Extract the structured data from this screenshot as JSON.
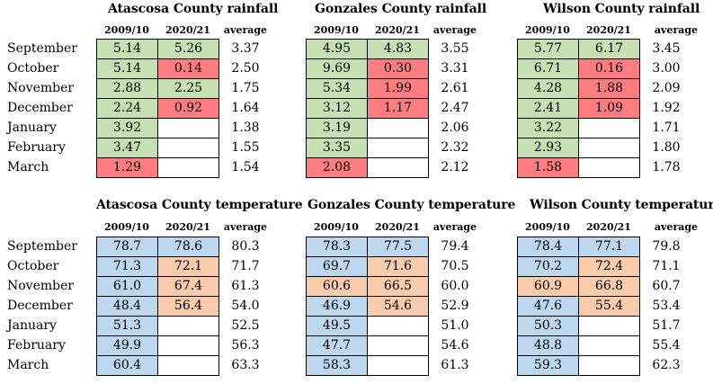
{
  "colors": {
    "green": "#C6E0B4",
    "red": "#FF7C80",
    "blue": "#BDD7EE",
    "orange": "#F8CBAD",
    "empty": "#FFFFFF"
  },
  "months": [
    "September",
    "October",
    "November",
    "December",
    "January",
    "February",
    "March"
  ],
  "headers": {
    "col1": "2009/10",
    "col2": "2020/21",
    "avg": "average"
  },
  "rainfall": [
    {
      "title": "Atascosa County rainfall",
      "rows": [
        {
          "v1": "5.14",
          "c1": "green",
          "v2": "5.26",
          "c2": "green",
          "avg": "3.37"
        },
        {
          "v1": "5.14",
          "c1": "green",
          "v2": "0.14",
          "c2": "red",
          "avg": "2.50"
        },
        {
          "v1": "2.88",
          "c1": "green",
          "v2": "2.25",
          "c2": "green",
          "avg": "1.75"
        },
        {
          "v1": "2.24",
          "c1": "green",
          "v2": "0.92",
          "c2": "red",
          "avg": "1.64"
        },
        {
          "v1": "3.92",
          "c1": "green",
          "v2": "",
          "c2": "empty",
          "avg": "1.38"
        },
        {
          "v1": "3.47",
          "c1": "green",
          "v2": "",
          "c2": "empty",
          "avg": "1.55"
        },
        {
          "v1": "1.29",
          "c1": "red",
          "v2": "",
          "c2": "empty",
          "avg": "1.54"
        }
      ]
    },
    {
      "title": "Gonzales County rainfall",
      "rows": [
        {
          "v1": "4.95",
          "c1": "green",
          "v2": "4.83",
          "c2": "green",
          "avg": "3.55"
        },
        {
          "v1": "9.69",
          "c1": "green",
          "v2": "0.30",
          "c2": "red",
          "avg": "3.31"
        },
        {
          "v1": "5.34",
          "c1": "green",
          "v2": "1.99",
          "c2": "red",
          "avg": "2.61"
        },
        {
          "v1": "3.12",
          "c1": "green",
          "v2": "1.17",
          "c2": "red",
          "avg": "2.47"
        },
        {
          "v1": "3.19",
          "c1": "green",
          "v2": "",
          "c2": "empty",
          "avg": "2.06"
        },
        {
          "v1": "3.35",
          "c1": "green",
          "v2": "",
          "c2": "empty",
          "avg": "2.32"
        },
        {
          "v1": "2.08",
          "c1": "red",
          "v2": "",
          "c2": "empty",
          "avg": "2.12"
        }
      ]
    },
    {
      "title": "Wilson County rainfall",
      "rows": [
        {
          "v1": "5.77",
          "c1": "green",
          "v2": "6.17",
          "c2": "green",
          "avg": "3.45"
        },
        {
          "v1": "6.71",
          "c1": "green",
          "v2": "0.16",
          "c2": "red",
          "avg": "3.00"
        },
        {
          "v1": "4.28",
          "c1": "green",
          "v2": "1.88",
          "c2": "red",
          "avg": "2.09"
        },
        {
          "v1": "2.41",
          "c1": "green",
          "v2": "1.09",
          "c2": "red",
          "avg": "1.92"
        },
        {
          "v1": "3.22",
          "c1": "green",
          "v2": "",
          "c2": "empty",
          "avg": "1.71"
        },
        {
          "v1": "2.93",
          "c1": "green",
          "v2": "",
          "c2": "empty",
          "avg": "1.80"
        },
        {
          "v1": "1.58",
          "c1": "red",
          "v2": "",
          "c2": "empty",
          "avg": "1.78"
        }
      ]
    }
  ],
  "temperature": [
    {
      "title": "Atascosa County temperature",
      "rows": [
        {
          "v1": "78.7",
          "c1": "blue",
          "v2": "78.6",
          "c2": "blue",
          "avg": "80.3"
        },
        {
          "v1": "71.3",
          "c1": "blue",
          "v2": "72.1",
          "c2": "orange",
          "avg": "71.7"
        },
        {
          "v1": "61.0",
          "c1": "blue",
          "v2": "67.4",
          "c2": "orange",
          "avg": "61.3"
        },
        {
          "v1": "48.4",
          "c1": "blue",
          "v2": "56.4",
          "c2": "orange",
          "avg": "54.0"
        },
        {
          "v1": "51.3",
          "c1": "blue",
          "v2": "",
          "c2": "empty",
          "avg": "52.5"
        },
        {
          "v1": "49.9",
          "c1": "blue",
          "v2": "",
          "c2": "empty",
          "avg": "56.3"
        },
        {
          "v1": "60.4",
          "c1": "blue",
          "v2": "",
          "c2": "empty",
          "avg": "63.3"
        }
      ]
    },
    {
      "title": "Gonzales County temperature",
      "rows": [
        {
          "v1": "78.3",
          "c1": "blue",
          "v2": "77.5",
          "c2": "blue",
          "avg": "79.4"
        },
        {
          "v1": "69.7",
          "c1": "blue",
          "v2": "71.6",
          "c2": "orange",
          "avg": "70.5"
        },
        {
          "v1": "60.6",
          "c1": "orange",
          "v2": "66.5",
          "c2": "orange",
          "avg": "60.0"
        },
        {
          "v1": "46.9",
          "c1": "blue",
          "v2": "54.6",
          "c2": "orange",
          "avg": "52.9"
        },
        {
          "v1": "49.5",
          "c1": "blue",
          "v2": "",
          "c2": "empty",
          "avg": "51.0"
        },
        {
          "v1": "47.7",
          "c1": "blue",
          "v2": "",
          "c2": "empty",
          "avg": "54.6"
        },
        {
          "v1": "58.3",
          "c1": "blue",
          "v2": "",
          "c2": "empty",
          "avg": "61.3"
        }
      ]
    },
    {
      "title": "Wilson County temperature",
      "rows": [
        {
          "v1": "78.4",
          "c1": "blue",
          "v2": "77.1",
          "c2": "blue",
          "avg": "79.8"
        },
        {
          "v1": "70.2",
          "c1": "blue",
          "v2": "72.4",
          "c2": "orange",
          "avg": "71.1"
        },
        {
          "v1": "60.9",
          "c1": "orange",
          "v2": "66.8",
          "c2": "orange",
          "avg": "60.7"
        },
        {
          "v1": "47.6",
          "c1": "blue",
          "v2": "55.4",
          "c2": "orange",
          "avg": "53.4"
        },
        {
          "v1": "50.3",
          "c1": "blue",
          "v2": "",
          "c2": "empty",
          "avg": "51.7"
        },
        {
          "v1": "48.8",
          "c1": "blue",
          "v2": "",
          "c2": "empty",
          "avg": "55.4"
        },
        {
          "v1": "59.3",
          "c1": "blue",
          "v2": "",
          "c2": "empty",
          "avg": "62.3"
        }
      ]
    }
  ]
}
